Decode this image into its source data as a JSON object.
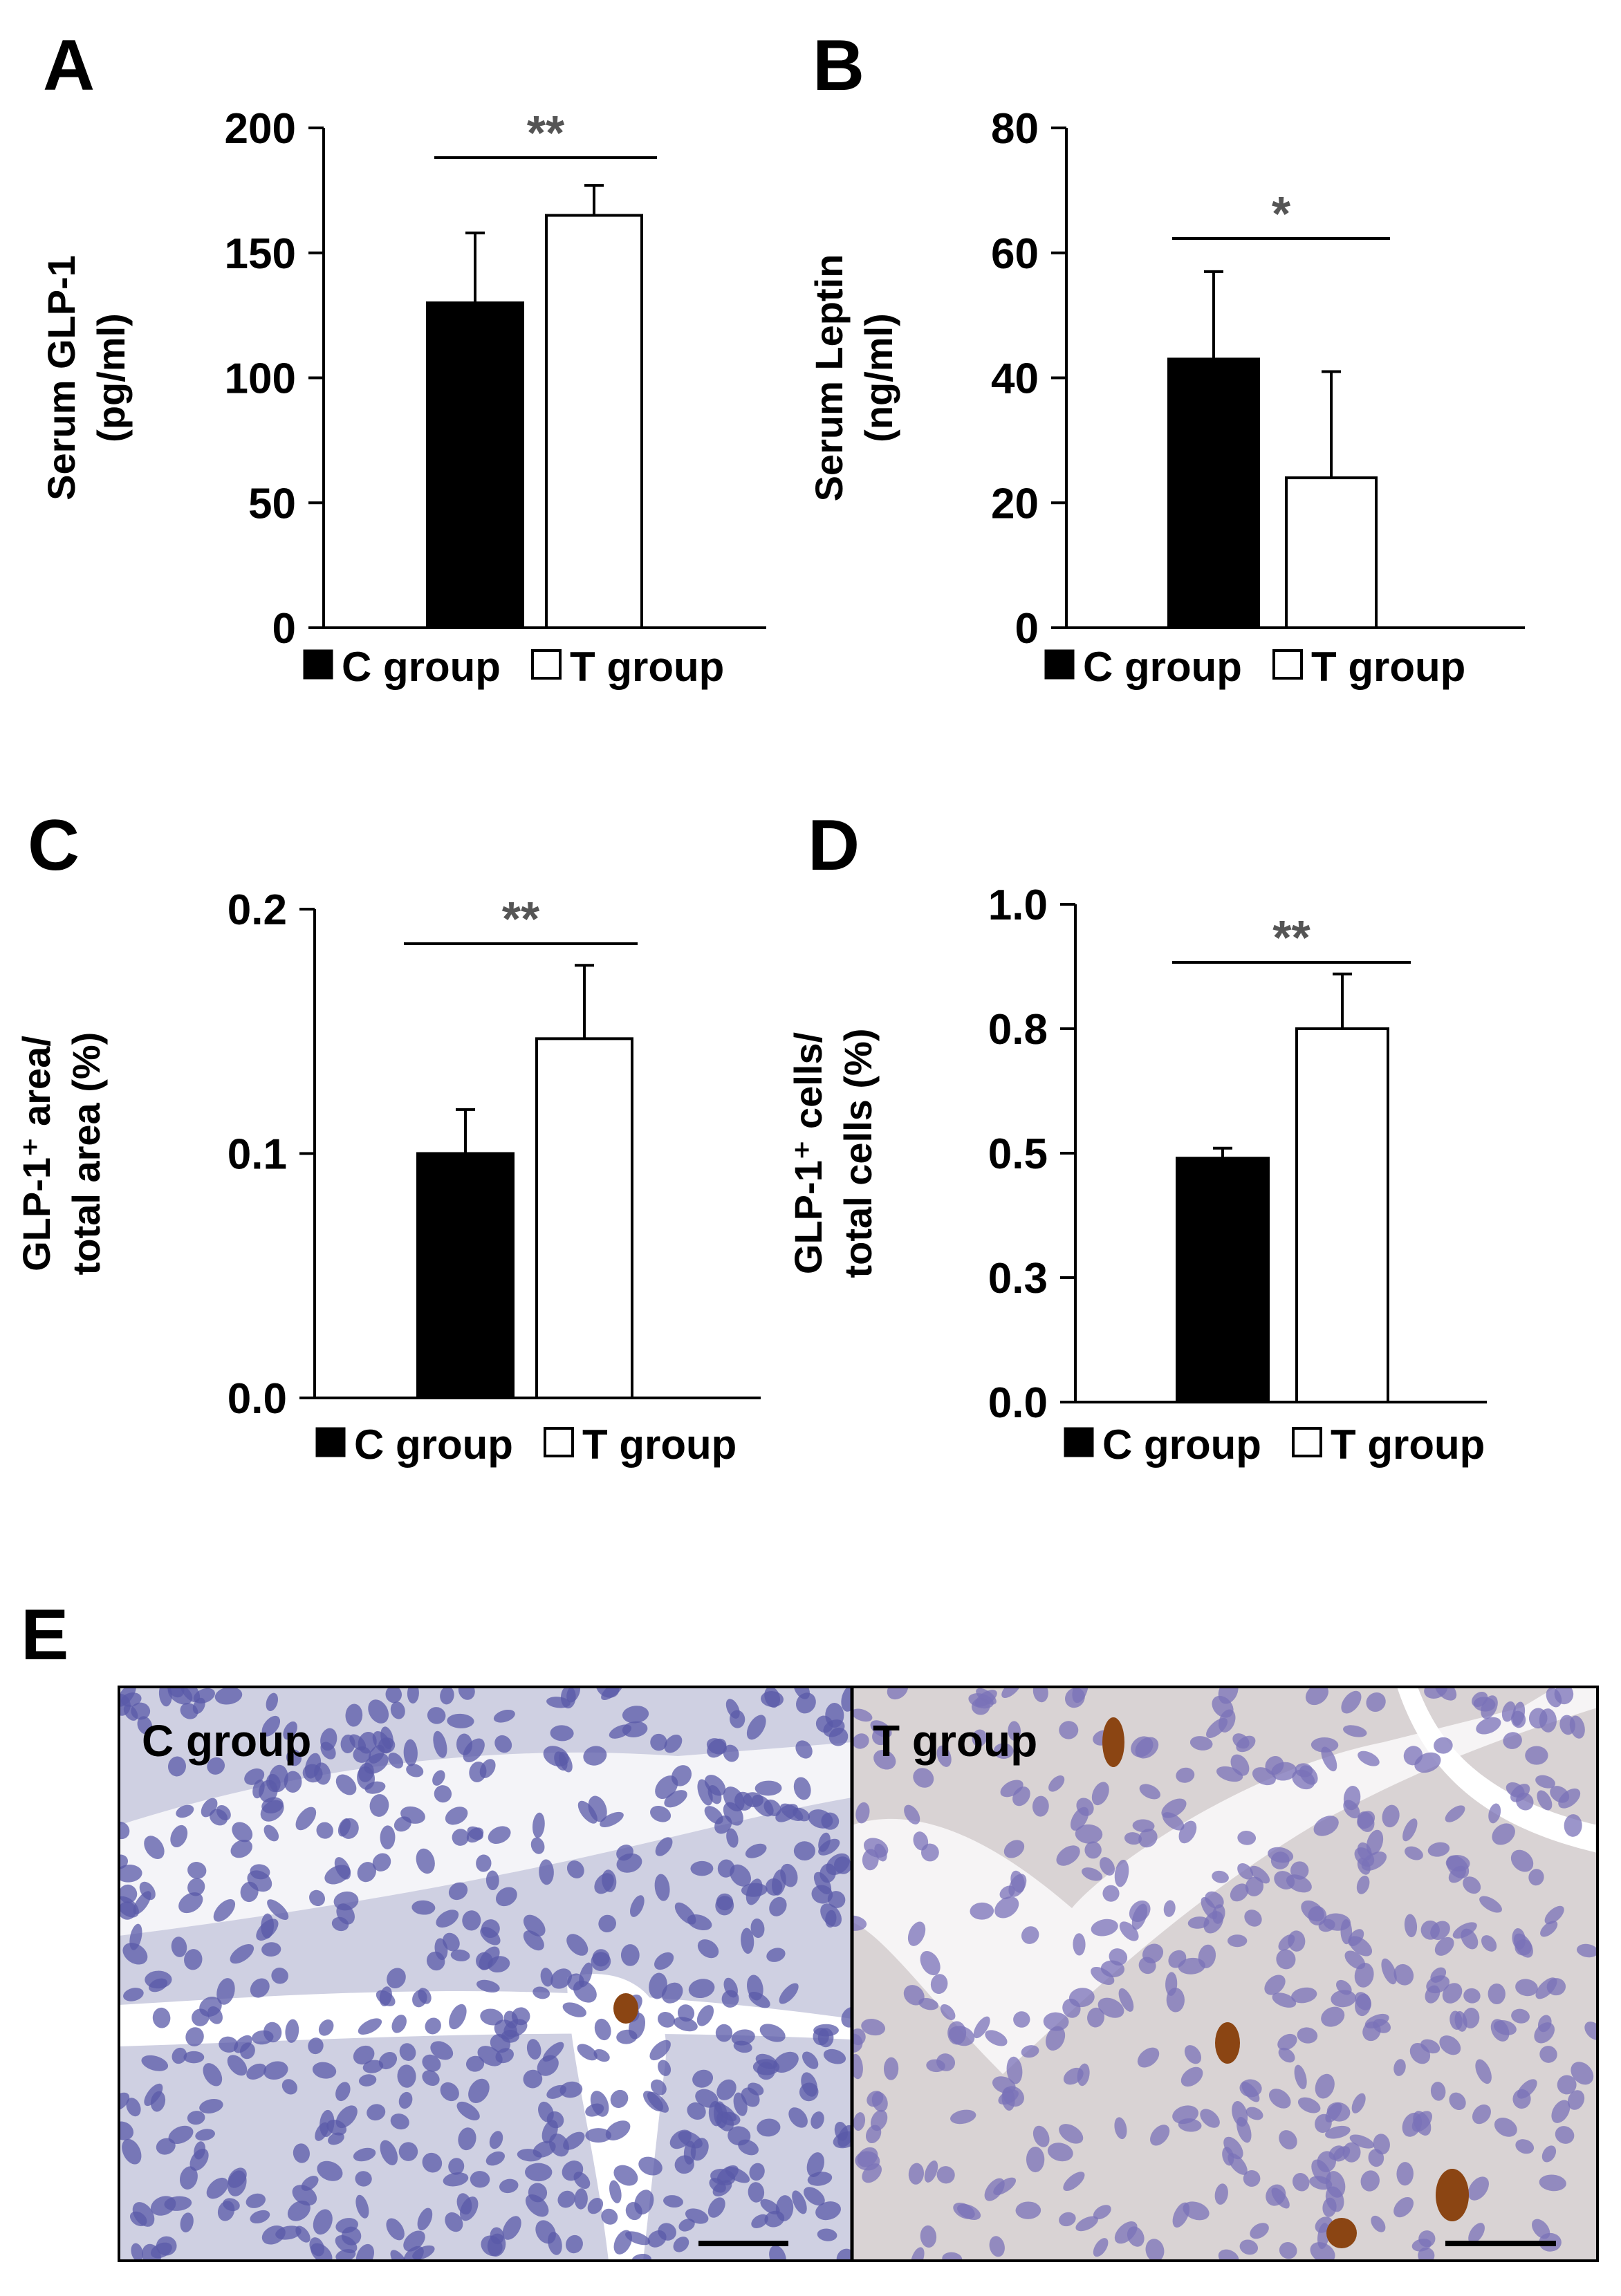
{
  "colors": {
    "c_group": "#000000",
    "t_group": "#ffffff",
    "axis": "#000000",
    "significance": "#555555",
    "gold_tick": "#7a5a00",
    "red_label": "#7a2a10",
    "green_label": "#0f4a2a",
    "tissue_background": "#d8d8e8",
    "nuclei": "#5a5aa8",
    "brown_stain": "#8b4513"
  },
  "legend": {
    "c_label": "C group",
    "t_label": "T group"
  },
  "chart_data": [
    {
      "type": "bar",
      "panel": "A",
      "categories": [
        "C group",
        "T group"
      ],
      "values": [
        130,
        165
      ],
      "errors": [
        28,
        12
      ],
      "ylabel": [
        "Serum GLP-1",
        "(pg/ml)"
      ],
      "ylim": [
        0,
        200
      ],
      "yticks": [
        0,
        50,
        100,
        150,
        200
      ],
      "tick_labels": [
        "0",
        "50",
        "100",
        "150",
        "200"
      ],
      "significance": "**"
    },
    {
      "type": "bar",
      "panel": "B",
      "categories": [
        "C group",
        "T group"
      ],
      "values": [
        43,
        24
      ],
      "errors": [
        14,
        17
      ],
      "ylabel": [
        "Serum Leptin",
        "(ng/ml)"
      ],
      "ylim": [
        0,
        80
      ],
      "yticks": [
        0,
        20,
        40,
        60,
        80
      ],
      "tick_labels": [
        "0",
        "20",
        "40",
        "60",
        "80"
      ],
      "significance": "*"
    },
    {
      "type": "bar",
      "panel": "C",
      "categories": [
        "C group",
        "T group"
      ],
      "values": [
        0.1,
        0.147
      ],
      "errors": [
        0.018,
        0.03
      ],
      "ylabel": [
        "GLP-1⁺ area/",
        "total area (%)"
      ],
      "ylim": [
        0,
        0.2
      ],
      "yticks": [
        0,
        0.1,
        0.2
      ],
      "tick_labels": [
        "0.0",
        "0.1",
        "0.2"
      ],
      "significance": "**"
    },
    {
      "type": "bar",
      "panel": "D",
      "categories": [
        "C group",
        "T group"
      ],
      "values": [
        0.49,
        0.75
      ],
      "errors": [
        0.02,
        0.11
      ],
      "ylabel": [
        "GLP-1⁺ cells/",
        "total cells (%)"
      ],
      "ylim": [
        0,
        1.0
      ],
      "yticks": [
        0,
        0.25,
        0.5,
        0.75,
        1.0
      ],
      "tick_labels": [
        "0.0",
        "0.3",
        "0.5",
        "0.8",
        "1.0"
      ],
      "significance": "**"
    }
  ],
  "panel_e": {
    "letter": "E",
    "left_label": "C group",
    "right_label": "T group"
  }
}
